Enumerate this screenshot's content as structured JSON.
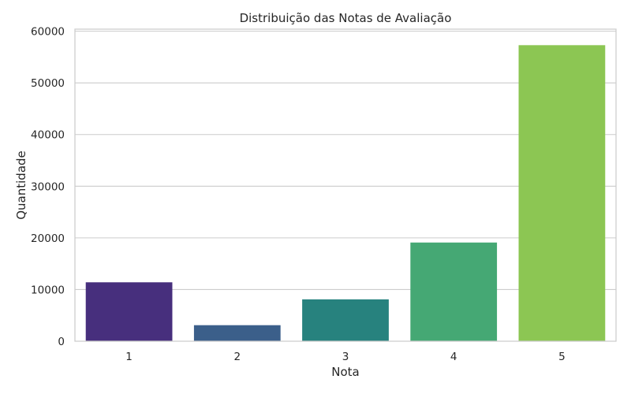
{
  "chart_data": {
    "type": "bar",
    "title": "Distribuição das Notas de Avaliação",
    "xlabel": "Nota",
    "ylabel": "Quantidade",
    "categories": [
      "1",
      "2",
      "3",
      "4",
      "5"
    ],
    "values": [
      11400,
      3100,
      8100,
      19100,
      57300
    ],
    "colors": [
      "#472f7d",
      "#3b5f8a",
      "#27827e",
      "#45a874",
      "#8cc653"
    ],
    "ylim": [
      0,
      60400
    ],
    "yticks": [
      0,
      10000,
      20000,
      30000,
      40000,
      50000,
      60000
    ],
    "ytick_labels": [
      "0",
      "10000",
      "20000",
      "30000",
      "40000",
      "50000",
      "60000"
    ],
    "grid": "horizontal"
  }
}
